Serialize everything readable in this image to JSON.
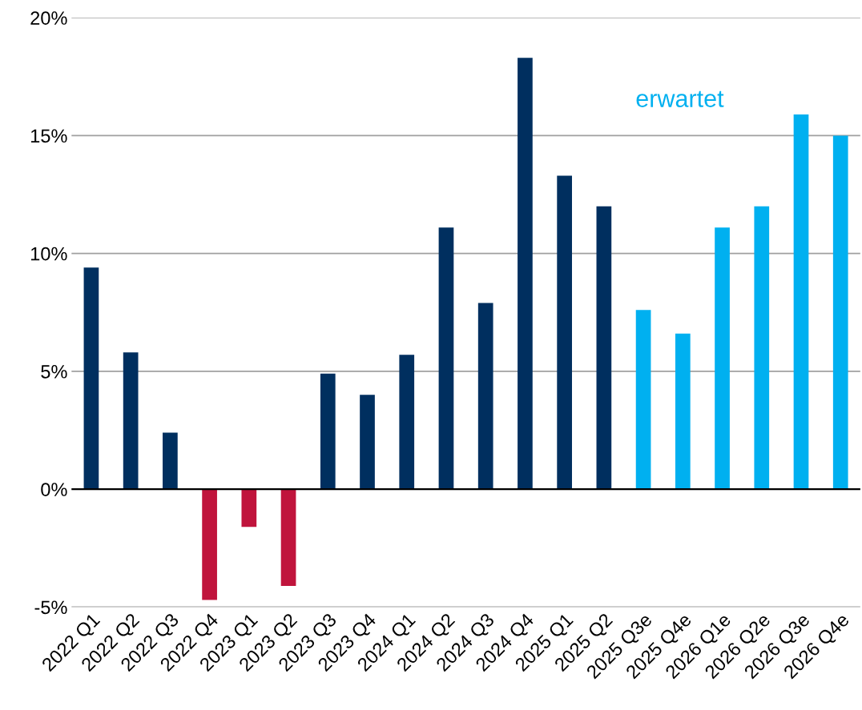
{
  "chart_data": {
    "type": "bar",
    "categories": [
      "2022 Q1",
      "2022 Q2",
      "2022 Q3",
      "2022 Q4",
      "2023 Q1",
      "2023 Q2",
      "2023 Q3",
      "2023 Q4",
      "2024 Q1",
      "2024 Q2",
      "2024 Q3",
      "2024 Q4",
      "2025 Q1",
      "2025 Q2",
      "2025 Q3e",
      "2025 Q4e",
      "2026 Q1e",
      "2026 Q2e",
      "2026 Q3e",
      "2026 Q4e"
    ],
    "values": [
      9.4,
      5.8,
      2.4,
      -4.7,
      -1.6,
      -4.1,
      4.9,
      4.0,
      5.7,
      11.1,
      7.9,
      18.3,
      13.3,
      12.0,
      7.6,
      6.6,
      11.1,
      12.0,
      15.9,
      15.0
    ],
    "colors": [
      "#002f5f",
      "#002f5f",
      "#002f5f",
      "#c0143c",
      "#c0143c",
      "#c0143c",
      "#002f5f",
      "#002f5f",
      "#002f5f",
      "#002f5f",
      "#002f5f",
      "#002f5f",
      "#002f5f",
      "#002f5f",
      "#00b0f0",
      "#00b0f0",
      "#00b0f0",
      "#00b0f0",
      "#00b0f0",
      "#00b0f0"
    ],
    "ylim": [
      -5,
      20
    ],
    "yticks": [
      {
        "value": -5,
        "label": "-5%"
      },
      {
        "value": 0,
        "label": "0%"
      },
      {
        "value": 5,
        "label": "5%"
      },
      {
        "value": 10,
        "label": "10%"
      },
      {
        "value": 15,
        "label": "15%"
      },
      {
        "value": 20,
        "label": "20%"
      }
    ],
    "grid": "y",
    "annotations": [
      "erwartet"
    ]
  }
}
